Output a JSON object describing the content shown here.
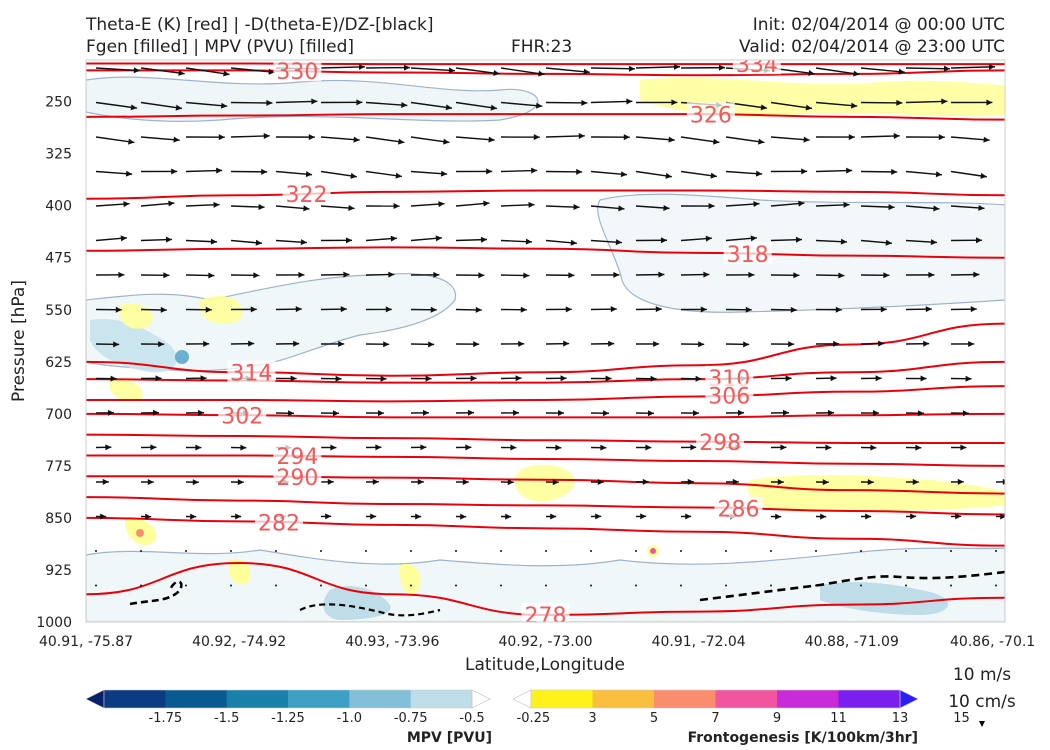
{
  "header": {
    "line1_left": "Theta-E (K) [red] | -D(theta-E)/DZ-[black]",
    "line2_left": "Fgen [filled] | MPV (PVU) [filled]",
    "line2_center": "FHR:23",
    "line1_right": "Init: 02/04/2014 @ 00:00 UTC",
    "line2_right": "Valid: 02/04/2014 @ 23:00 UTC"
  },
  "chart_data": {
    "type": "cross-section contour",
    "xlabel": "Latitude,Longitude",
    "ylabel": "Pressure [hPa]",
    "x_ticks": [
      "40.91, -75.87",
      "40.92, -74.92",
      "40.93, -73.96",
      "40.92, -73.00",
      "40.91, -72.04",
      "40.88, -71.09",
      "40.86, -70.1"
    ],
    "y_ticks": [
      "250",
      "325",
      "400",
      "475",
      "550",
      "625",
      "700",
      "775",
      "850",
      "925",
      "1000"
    ],
    "ylim": [
      1000,
      190
    ],
    "theta_e_contours": [
      {
        "label": "330",
        "pressure": [
          205,
          205,
          208,
          210,
          212,
          210,
          205
        ]
      },
      {
        "label": "334",
        "pressure": [
          195,
          195,
          196,
          196,
          196,
          196,
          196
        ]
      },
      {
        "label": "326",
        "pressure": [
          272,
          270,
          268,
          268,
          268,
          272,
          276
        ]
      },
      {
        "label": "322",
        "pressure": [
          390,
          385,
          380,
          378,
          378,
          380,
          385
        ]
      },
      {
        "label": "318",
        "pressure": [
          465,
          462,
          460,
          462,
          468,
          472,
          475
        ]
      },
      {
        "label": "314",
        "pressure": [
          625,
          640,
          645,
          640,
          630,
          600,
          570
        ]
      },
      {
        "label": "310",
        "pressure": [
          650,
          652,
          655,
          655,
          650,
          640,
          625
        ]
      },
      {
        "label": "306",
        "pressure": [
          680,
          680,
          682,
          680,
          675,
          668,
          660
        ]
      },
      {
        "label": "302",
        "pressure": [
          700,
          702,
          705,
          705,
          705,
          702,
          700
        ]
      },
      {
        "label": "298",
        "pressure": [
          730,
          732,
          735,
          738,
          740,
          742,
          742
        ]
      },
      {
        "label": "294",
        "pressure": [
          760,
          760,
          762,
          765,
          768,
          772,
          775
        ]
      },
      {
        "label": "290",
        "pressure": [
          790,
          790,
          792,
          795,
          800,
          810,
          815
        ]
      },
      {
        "label": "286",
        "pressure": [
          820,
          825,
          830,
          832,
          835,
          840,
          845
        ]
      },
      {
        "label": "282",
        "pressure": [
          850,
          855,
          860,
          865,
          870,
          880,
          890
        ]
      },
      {
        "label": "278",
        "pressure": [
          960,
          915,
          960,
          990,
          985,
          975,
          965
        ]
      }
    ],
    "wind_vectors_reference": [
      "10 m/s",
      "10 cm/s"
    ],
    "colorbars": [
      {
        "title": "MPV [PVU]",
        "labels": [
          "-1.75",
          "-1.5",
          "-1.25",
          "-1.0",
          "-0.75",
          "-0.5",
          "-0.25"
        ],
        "colors": [
          "#08206b",
          "#0b3b80",
          "#0a5a92",
          "#1980aa",
          "#3f9fc4",
          "#82bfd8",
          "#bfdde8",
          "#ffffff"
        ]
      },
      {
        "title": "Frontogenesis [K/100km/3hr]",
        "labels": [
          "3",
          "5",
          "7",
          "9",
          "11",
          "13",
          "15"
        ],
        "colors": [
          "#ffffff",
          "#fff21a",
          "#fbbf40",
          "#f98d6d",
          "#f2559f",
          "#c82bd8",
          "#7a1ff0",
          "#2a1ff5"
        ]
      }
    ]
  }
}
